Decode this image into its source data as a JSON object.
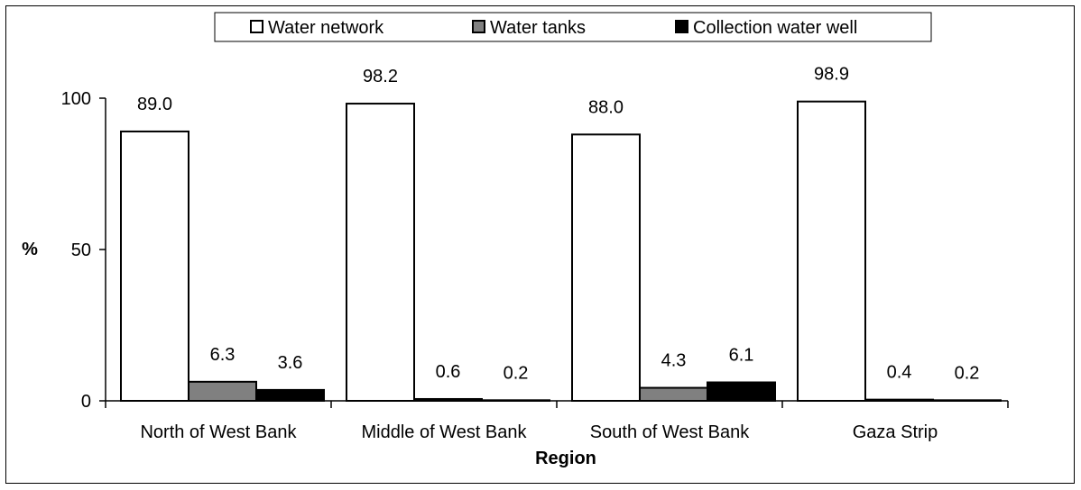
{
  "chart_data": {
    "type": "bar",
    "title": "",
    "xlabel": "Region",
    "ylabel": "%",
    "ylim": [
      0,
      100
    ],
    "yticks": [
      0,
      50,
      100
    ],
    "categories": [
      "North of West Bank",
      "Middle of West Bank",
      "South of West Bank",
      "Gaza Strip"
    ],
    "series": [
      {
        "name": "Water network",
        "color": "#ffffff",
        "values": [
          89.0,
          98.2,
          88.0,
          98.9
        ],
        "labels": [
          "89.0",
          "98.2",
          "88.0",
          "98.9"
        ]
      },
      {
        "name": "Water tanks",
        "color": "#808080",
        "values": [
          6.3,
          0.6,
          4.3,
          0.4
        ],
        "labels": [
          "6.3",
          "0.6",
          "4.3",
          "0.4"
        ]
      },
      {
        "name": "Collection water well",
        "color": "#000000",
        "values": [
          3.6,
          0.2,
          6.1,
          0.2
        ],
        "labels": [
          "3.6",
          "0.2",
          "6.1",
          "0.2"
        ]
      }
    ],
    "grid": false,
    "legend_position": "top"
  }
}
